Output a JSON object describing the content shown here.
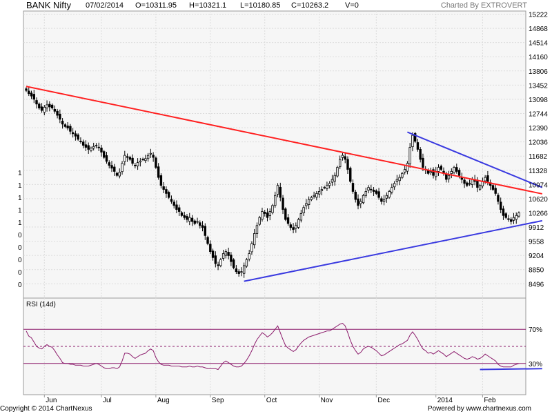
{
  "header": {
    "title": "BANK Nifty",
    "date": "07/02/2014",
    "open": "O=10311.95",
    "high": "H=10321.1",
    "low": "L=10180.85",
    "close": "C=10263.2",
    "volume": "V=0",
    "charted_by": "Charted By EXTROVERT"
  },
  "footer": {
    "copyright": "Copyright © 2014 ChartNexus",
    "powered_by": "Powered by www.chartnexus.com"
  },
  "chart_data": [
    {
      "type": "candlestick",
      "title": "",
      "ylim": [
        8140,
        15300
      ],
      "y_ticks": [
        15222,
        14868,
        14514,
        14160,
        13806,
        13452,
        13098,
        12744,
        12390,
        12036,
        11682,
        11328,
        10974,
        10620,
        10266,
        9912,
        9558,
        9204,
        8850,
        8496
      ],
      "left_axis_labels": [
        "1",
        "1",
        "1",
        "1",
        "1",
        "0",
        "0",
        "0",
        "0",
        "0",
        "0"
      ],
      "x_labels": [
        "Jun",
        "Jul",
        "Aug",
        "Sep",
        "Oct",
        "Nov",
        "Dec",
        "2014",
        "Feb"
      ],
      "grid": true,
      "series": [
        {
          "kind": "ohlc",
          "close": [
            13320,
            13240,
            13180,
            13100,
            12980,
            12880,
            12820,
            12900,
            12960,
            12910,
            12880,
            12800,
            12700,
            12600,
            12480,
            12420,
            12380,
            12300,
            12240,
            12180,
            12100,
            12050,
            11950,
            11900,
            11850,
            11880,
            11920,
            11950,
            11900,
            11780,
            11650,
            11550,
            11450,
            11380,
            11300,
            11200,
            11280,
            11500,
            11700,
            11650,
            11600,
            11500,
            11450,
            11520,
            11560,
            11600,
            11620,
            11700,
            11750,
            11650,
            11400,
            11150,
            10950,
            10850,
            10750,
            10650,
            10550,
            10450,
            10350,
            10300,
            10200,
            10150,
            10100,
            10150,
            10050,
            10000,
            10050,
            9950,
            9900,
            9700,
            9500,
            9300,
            9150,
            9000,
            8950,
            9100,
            9250,
            9300,
            9200,
            9050,
            8900,
            8800,
            8750,
            8800,
            8950,
            9100,
            9250,
            9500,
            9750,
            9950,
            10150,
            10300,
            10250,
            10150,
            10300,
            10450,
            10700,
            10950,
            10650,
            10350,
            10100,
            10000,
            9900,
            9850,
            9950,
            10100,
            10250,
            10400,
            10500,
            10600,
            10650,
            10700,
            10750,
            10800,
            10850,
            10900,
            10950,
            11000,
            11100,
            11200,
            11400,
            11600,
            11700,
            11600,
            11350,
            11050,
            10800,
            10600,
            10450,
            10550,
            10700,
            10800,
            10900,
            10850,
            10800,
            10750,
            10650,
            10550,
            10600,
            10700,
            10800,
            10900,
            11000,
            11100,
            11150,
            11250,
            11350,
            11500,
            11900,
            12200,
            12050,
            11850,
            11600,
            11400,
            11350,
            11250,
            11300,
            11200,
            11300,
            11400,
            11350,
            11250,
            11100,
            11200,
            11300,
            11400,
            11300,
            11200,
            11100,
            11000,
            10950,
            11000,
            11100,
            11050,
            10900,
            10950,
            11050,
            11150,
            11050,
            10950,
            10850,
            10750,
            10550,
            10350,
            10200,
            10150,
            10100,
            10050,
            10150,
            10200,
            10263
          ]
        },
        {
          "kind": "trendline",
          "name": "",
          "color": "#ff2020",
          "x": [
            0,
            199
          ],
          "y": [
            13420,
            10740
          ]
        },
        {
          "kind": "trendline",
          "name": "",
          "color": "#3a3ae0",
          "x": [
            84,
            199
          ],
          "y": [
            8560,
            10070
          ]
        },
        {
          "kind": "trendline",
          "name": "",
          "color": "#3a3ae0",
          "x": [
            147,
            199
          ],
          "y": [
            12280,
            10900
          ]
        }
      ]
    },
    {
      "type": "line",
      "title": "RSI (14d)",
      "ylim": [
        0,
        100
      ],
      "y_ticks": [
        "70%",
        "30%"
      ],
      "reference_lines": [
        70,
        50,
        30
      ],
      "grid": true,
      "series": [
        {
          "name": "",
          "color": "#8b1a6b",
          "values": [
            68,
            62,
            60,
            55,
            50,
            48,
            47,
            50,
            52,
            50,
            49,
            45,
            40,
            36,
            31,
            30,
            30,
            29,
            29,
            28,
            28,
            28,
            27,
            27,
            27,
            28,
            29,
            30,
            29,
            27,
            25,
            24,
            24,
            25,
            25,
            24,
            26,
            33,
            42,
            42,
            41,
            38,
            36,
            38,
            40,
            41,
            42,
            45,
            47,
            45,
            37,
            32,
            29,
            28,
            28,
            28,
            27,
            27,
            27,
            27,
            26,
            26,
            26,
            27,
            26,
            26,
            27,
            26,
            26,
            25,
            24,
            24,
            24,
            24,
            23,
            27,
            31,
            33,
            31,
            29,
            27,
            26,
            26,
            27,
            30,
            34,
            39,
            45,
            52,
            58,
            62,
            66,
            64,
            61,
            63,
            66,
            70,
            74,
            66,
            58,
            51,
            48,
            46,
            44,
            46,
            50,
            54,
            57,
            59,
            61,
            62,
            63,
            64,
            65,
            66,
            67,
            68,
            68,
            70,
            72,
            74,
            76,
            77,
            74,
            66,
            57,
            50,
            45,
            41,
            43,
            47,
            49,
            50,
            49,
            47,
            45,
            42,
            39,
            40,
            42,
            44,
            46,
            48,
            50,
            52,
            53,
            55,
            57,
            63,
            67,
            63,
            58,
            52,
            47,
            45,
            42,
            43,
            41,
            43,
            45,
            43,
            41,
            38,
            40,
            42,
            44,
            42,
            40,
            38,
            36,
            35,
            36,
            38,
            37,
            35,
            36,
            38,
            41,
            39,
            37,
            35,
            33,
            29,
            27,
            26,
            26,
            26,
            26,
            28,
            29,
            30
          ]
        },
        {
          "kind": "trendline",
          "name": "",
          "color": "#3a3ae0",
          "x": [
            175,
            199
          ],
          "y": [
            23,
            24
          ]
        }
      ]
    }
  ]
}
